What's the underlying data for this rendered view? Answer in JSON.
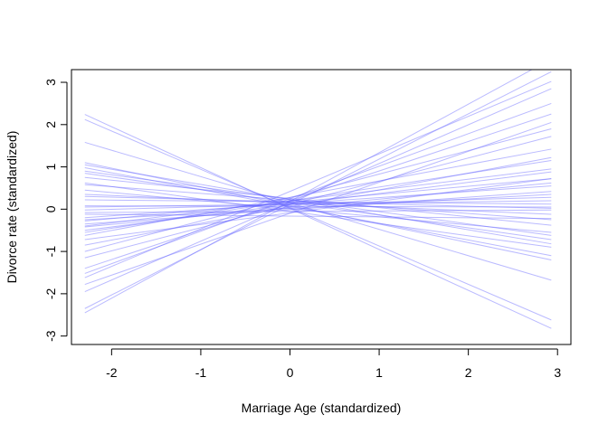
{
  "chart_data": {
    "type": "line",
    "title": "",
    "xlabel": "Marriage Age (standardized)",
    "ylabel": "Divorce rate (standardized)",
    "xlim": [
      -2.45,
      3.15
    ],
    "ylim": [
      -3.2,
      3.3
    ],
    "x_ticks": [
      "-2",
      "-1",
      "0",
      "1",
      "2",
      "3"
    ],
    "y_ticks": [
      "-3",
      "-2",
      "-1",
      "0",
      "1",
      "2",
      "3"
    ],
    "x_tick_values": [
      -2,
      -1,
      0,
      1,
      2,
      3
    ],
    "y_tick_values": [
      -3,
      -2,
      -1,
      0,
      1,
      2,
      3
    ],
    "line_color": "#6666ff",
    "line_opacity": 0.45,
    "grid": false,
    "legend": "none",
    "series": [
      {
        "x": [
          -2.3,
          2.93
        ],
        "y": [
          2.24,
          -2.82
        ]
      },
      {
        "x": [
          -2.3,
          2.93
        ],
        "y": [
          2.12,
          -2.62
        ]
      },
      {
        "x": [
          -2.3,
          2.93
        ],
        "y": [
          1.58,
          -1.68
        ]
      },
      {
        "x": [
          -2.3,
          2.93
        ],
        "y": [
          1.1,
          -1.2
        ]
      },
      {
        "x": [
          -2.3,
          2.93
        ],
        "y": [
          1.05,
          -0.82
        ]
      },
      {
        "x": [
          -2.3,
          2.93
        ],
        "y": [
          0.98,
          -1.1
        ]
      },
      {
        "x": [
          -2.3,
          2.93
        ],
        "y": [
          0.9,
          -0.62
        ]
      },
      {
        "x": [
          -2.3,
          2.93
        ],
        "y": [
          0.85,
          -0.72
        ]
      },
      {
        "x": [
          -2.3,
          2.93
        ],
        "y": [
          0.75,
          -0.38
        ]
      },
      {
        "x": [
          -2.3,
          2.93
        ],
        "y": [
          0.58,
          -0.25
        ]
      },
      {
        "x": [
          -2.3,
          2.93
        ],
        "y": [
          0.3,
          0.02
        ]
      },
      {
        "x": [
          -2.3,
          2.93
        ],
        "y": [
          0.22,
          0.12
        ]
      },
      {
        "x": [
          -2.3,
          2.93
        ],
        "y": [
          0.08,
          0.05
        ]
      },
      {
        "x": [
          -2.3,
          2.93
        ],
        "y": [
          -0.02,
          0.28
        ]
      },
      {
        "x": [
          -2.3,
          2.93
        ],
        "y": [
          -0.08,
          -0.02
        ]
      },
      {
        "x": [
          -2.3,
          2.93
        ],
        "y": [
          -0.12,
          -0.22
        ]
      },
      {
        "x": [
          -2.3,
          2.93
        ],
        "y": [
          -0.2,
          0.55
        ]
      },
      {
        "x": [
          -2.3,
          2.93
        ],
        "y": [
          -0.28,
          0.72
        ]
      },
      {
        "x": [
          -2.3,
          2.93
        ],
        "y": [
          -0.35,
          0.42
        ]
      },
      {
        "x": [
          -2.3,
          2.93
        ],
        "y": [
          -0.42,
          0.62
        ]
      },
      {
        "x": [
          -2.3,
          2.93
        ],
        "y": [
          -0.5,
          0.88
        ]
      },
      {
        "x": [
          -2.3,
          2.93
        ],
        "y": [
          -0.55,
          1.15
        ]
      },
      {
        "x": [
          -2.3,
          2.93
        ],
        "y": [
          -0.62,
          1.42
        ]
      },
      {
        "x": [
          -2.3,
          2.93
        ],
        "y": [
          -0.72,
          0.72
        ]
      },
      {
        "x": [
          -2.3,
          2.93
        ],
        "y": [
          -0.85,
          1.22
        ]
      },
      {
        "x": [
          -2.3,
          2.93
        ],
        "y": [
          -1.0,
          1.9
        ]
      },
      {
        "x": [
          -2.3,
          2.93
        ],
        "y": [
          -1.15,
          1.72
        ]
      },
      {
        "x": [
          -2.3,
          2.93
        ],
        "y": [
          -1.4,
          2.25
        ]
      },
      {
        "x": [
          -2.3,
          2.93
        ],
        "y": [
          -1.52,
          2.5
        ]
      },
      {
        "x": [
          -2.3,
          2.93
        ],
        "y": [
          -1.62,
          3.02
        ]
      },
      {
        "x": [
          -2.3,
          2.93
        ],
        "y": [
          -1.78,
          2.05
        ]
      },
      {
        "x": [
          -2.3,
          2.93
        ],
        "y": [
          -1.95,
          2.85
        ]
      },
      {
        "x": [
          -2.3,
          2.93
        ],
        "y": [
          -2.35,
          3.25
        ]
      },
      {
        "x": [
          -2.3,
          2.93
        ],
        "y": [
          -2.45,
          3.55
        ]
      },
      {
        "x": [
          -2.3,
          2.93
        ],
        "y": [
          0.45,
          -0.55
        ]
      },
      {
        "x": [
          -2.3,
          2.93
        ],
        "y": [
          0.62,
          -0.9
        ]
      },
      {
        "x": [
          -2.3,
          2.93
        ],
        "y": [
          0.35,
          -0.12
        ]
      },
      {
        "x": [
          -2.3,
          2.93
        ],
        "y": [
          -0.25,
          0.35
        ]
      },
      {
        "x": [
          -2.3,
          2.93
        ],
        "y": [
          0.05,
          0.2
        ]
      },
      {
        "x": [
          -2.3,
          2.93
        ],
        "y": [
          -0.4,
          0.95
        ]
      }
    ]
  }
}
